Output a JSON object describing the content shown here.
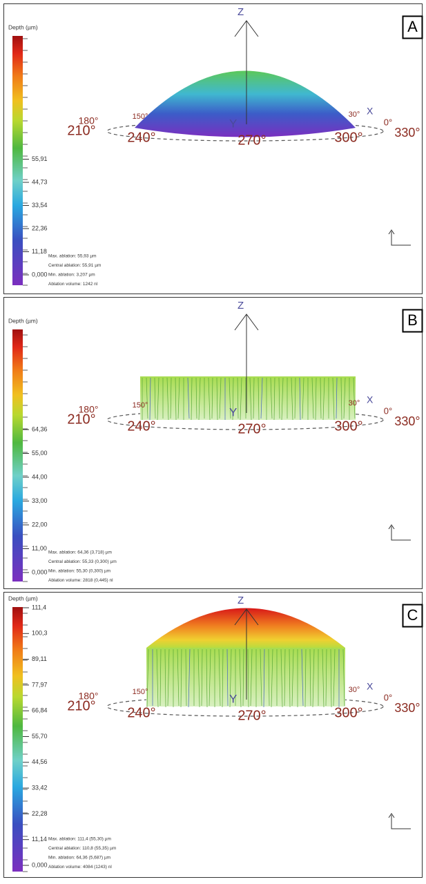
{
  "panels": [
    {
      "label": "A",
      "colorbar_title": "Depth (µm)",
      "colorbar_labels": [
        "55,91",
        "44,73",
        "33,54",
        "22,36",
        "11,18",
        "0,000"
      ],
      "stats": [
        "Max. ablation: 55,93 µm",
        "Central ablation: 55,91 µm",
        "Min. ablation: 3,207 µm",
        "Ablation volume: 1242 nl"
      ],
      "axes": {
        "z": "Z",
        "y": "Y",
        "x": "X"
      },
      "angles": [
        "180°",
        "150°",
        "30°",
        "0°",
        "210°",
        "240°",
        "270°",
        "300°",
        "330°"
      ]
    },
    {
      "label": "B",
      "colorbar_title": "Depth (µm)",
      "colorbar_labels": [
        "64,36",
        "55,00",
        "44,00",
        "33,00",
        "22,00",
        "11,00",
        "0,000"
      ],
      "stats": [
        "Max. ablation: 64,36 (3,718) µm",
        "Central ablation: 55,33 (0,300) µm",
        "Min. ablation: 55,30 (0,300) µm",
        "Ablation volume: 2818 (0,445) nl"
      ],
      "axes": {
        "z": "Z",
        "y": "Y",
        "x": "X"
      },
      "angles": [
        "180°",
        "150°",
        "30°",
        "0°",
        "210°",
        "240°",
        "270°",
        "300°",
        "330°"
      ]
    },
    {
      "label": "C",
      "colorbar_title": "Depth (µm)",
      "colorbar_labels": [
        "111,4",
        "100,3",
        "89,11",
        "77,97",
        "66,84",
        "55,70",
        "44,56",
        "33,42",
        "22,28",
        "11,14",
        "0,000"
      ],
      "stats": [
        "Max. ablation: 111,4 (55,30) µm",
        "Central ablation: 110,8 (55,35) µm",
        "Min. ablation: 64,36 (5,687) µm",
        "Ablation volume: 4084 (1243) nl"
      ],
      "axes": {
        "z": "Z",
        "y": "Y",
        "x": "X"
      },
      "angles": [
        "180°",
        "150°",
        "30°",
        "0°",
        "210°",
        "240°",
        "270°",
        "300°",
        "330°"
      ]
    }
  ]
}
